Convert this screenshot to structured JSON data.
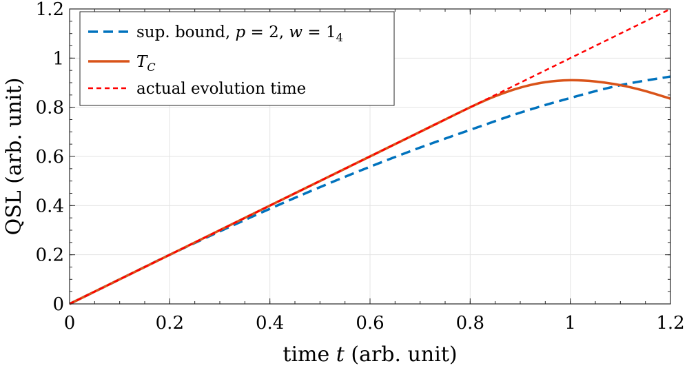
{
  "chart_data": {
    "type": "line",
    "xlabel_prefix": "time ",
    "xlabel_var": "t",
    "xlabel_suffix": " (arb. unit)",
    "ylabel": "QSL (arb. unit)",
    "xlim": [
      0,
      1.2
    ],
    "ylim": [
      0,
      1.2
    ],
    "xticks": [
      0,
      0.2,
      0.4,
      0.6,
      0.8,
      1,
      1.2
    ],
    "xtick_labels": [
      "0",
      "0.2",
      "0.4",
      "0.6",
      "0.8",
      "1",
      "1.2"
    ],
    "yticks": [
      0,
      0.2,
      0.4,
      0.6,
      0.8,
      1,
      1.2
    ],
    "ytick_labels": [
      "0",
      "0.2",
      "0.4",
      "0.6",
      "0.8",
      "1",
      "1.2"
    ],
    "grid": true,
    "legend_position": "top-left",
    "series": [
      {
        "name": "sup. bound, p = 2, w = 1_4",
        "legend_parts": {
          "a": "sup. bound, ",
          "p": "p",
          "b": " = 2, ",
          "w": "w",
          "c": " = 1",
          "sub": "4"
        },
        "color": "#0072BD",
        "style": "dashed",
        "x": [
          0,
          0.1,
          0.2,
          0.3,
          0.4,
          0.5,
          0.6,
          0.7,
          0.8,
          0.9,
          1.0,
          1.1,
          1.2
        ],
        "values": [
          0,
          0.1,
          0.2,
          0.295,
          0.387,
          0.475,
          0.558,
          0.636,
          0.708,
          0.778,
          0.838,
          0.89,
          0.925
        ]
      },
      {
        "name": "T_C",
        "legend_parts": {
          "T": "T",
          "sub": "C"
        },
        "color": "#D95319",
        "style": "solid",
        "x": [
          0,
          0.1,
          0.2,
          0.3,
          0.4,
          0.5,
          0.6,
          0.7,
          0.8,
          0.85,
          0.9,
          0.95,
          1.0,
          1.05,
          1.1,
          1.15,
          1.2
        ],
        "values": [
          0,
          0.1,
          0.2,
          0.3,
          0.4,
          0.5,
          0.6,
          0.7,
          0.8,
          0.845,
          0.88,
          0.902,
          0.91,
          0.905,
          0.89,
          0.866,
          0.835
        ]
      },
      {
        "name": "actual evolution time",
        "color": "#FF0000",
        "style": "dotted",
        "x": [
          0,
          1.2
        ],
        "values": [
          0,
          1.2
        ]
      }
    ]
  }
}
